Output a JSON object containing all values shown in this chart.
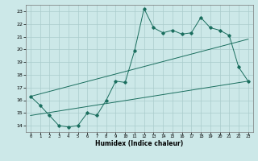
{
  "xlabel": "Humidex (Indice chaleur)",
  "ylabel": "",
  "bg_color": "#cce8e8",
  "grid_color": "#aacccc",
  "line_color": "#1a6e5e",
  "x_main": [
    0,
    1,
    2,
    3,
    4,
    5,
    6,
    7,
    8,
    9,
    10,
    11,
    12,
    13,
    14,
    15,
    16,
    17,
    18,
    19,
    20,
    21,
    22,
    23
  ],
  "y_main": [
    16.3,
    15.6,
    14.8,
    14.0,
    13.9,
    14.0,
    15.0,
    14.8,
    16.0,
    17.5,
    17.4,
    19.9,
    23.2,
    21.7,
    21.3,
    21.5,
    21.2,
    21.3,
    22.5,
    21.7,
    21.5,
    21.1,
    18.6,
    17.5
  ],
  "y_trend1_x": [
    0,
    23
  ],
  "y_trend1_y": [
    14.8,
    17.5
  ],
  "y_trend2_x": [
    0,
    23
  ],
  "y_trend2_y": [
    16.3,
    20.8
  ],
  "xlim": [
    -0.5,
    23.5
  ],
  "ylim": [
    13.5,
    23.5
  ],
  "yticks": [
    14,
    15,
    16,
    17,
    18,
    19,
    20,
    21,
    22,
    23
  ],
  "xticks": [
    0,
    1,
    2,
    3,
    4,
    5,
    6,
    7,
    8,
    9,
    10,
    11,
    12,
    13,
    14,
    15,
    16,
    17,
    18,
    19,
    20,
    21,
    22,
    23
  ]
}
